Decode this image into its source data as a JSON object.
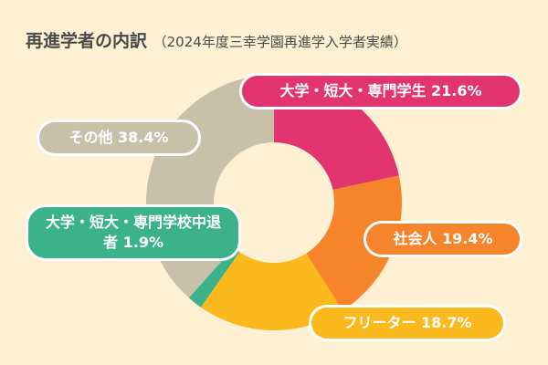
{
  "chart_data": {
    "type": "donut",
    "title": "再進学者の内訳",
    "subtitle": "（2024年度三幸学園再進学入学者実績）",
    "categories": [
      "大学・短大・専門学生",
      "社会人",
      "フリーター",
      "大学・短大・専門学校中退者",
      "その他"
    ],
    "values": [
      21.6,
      19.4,
      18.7,
      1.9,
      38.4
    ],
    "value_labels": [
      "21.6%",
      "19.4%",
      "18.7%",
      "1.9%",
      "38.4%"
    ],
    "colors": [
      "#e2356f",
      "#f6842b",
      "#fbb91d",
      "#3bb28a",
      "#c9c0aa"
    ]
  }
}
